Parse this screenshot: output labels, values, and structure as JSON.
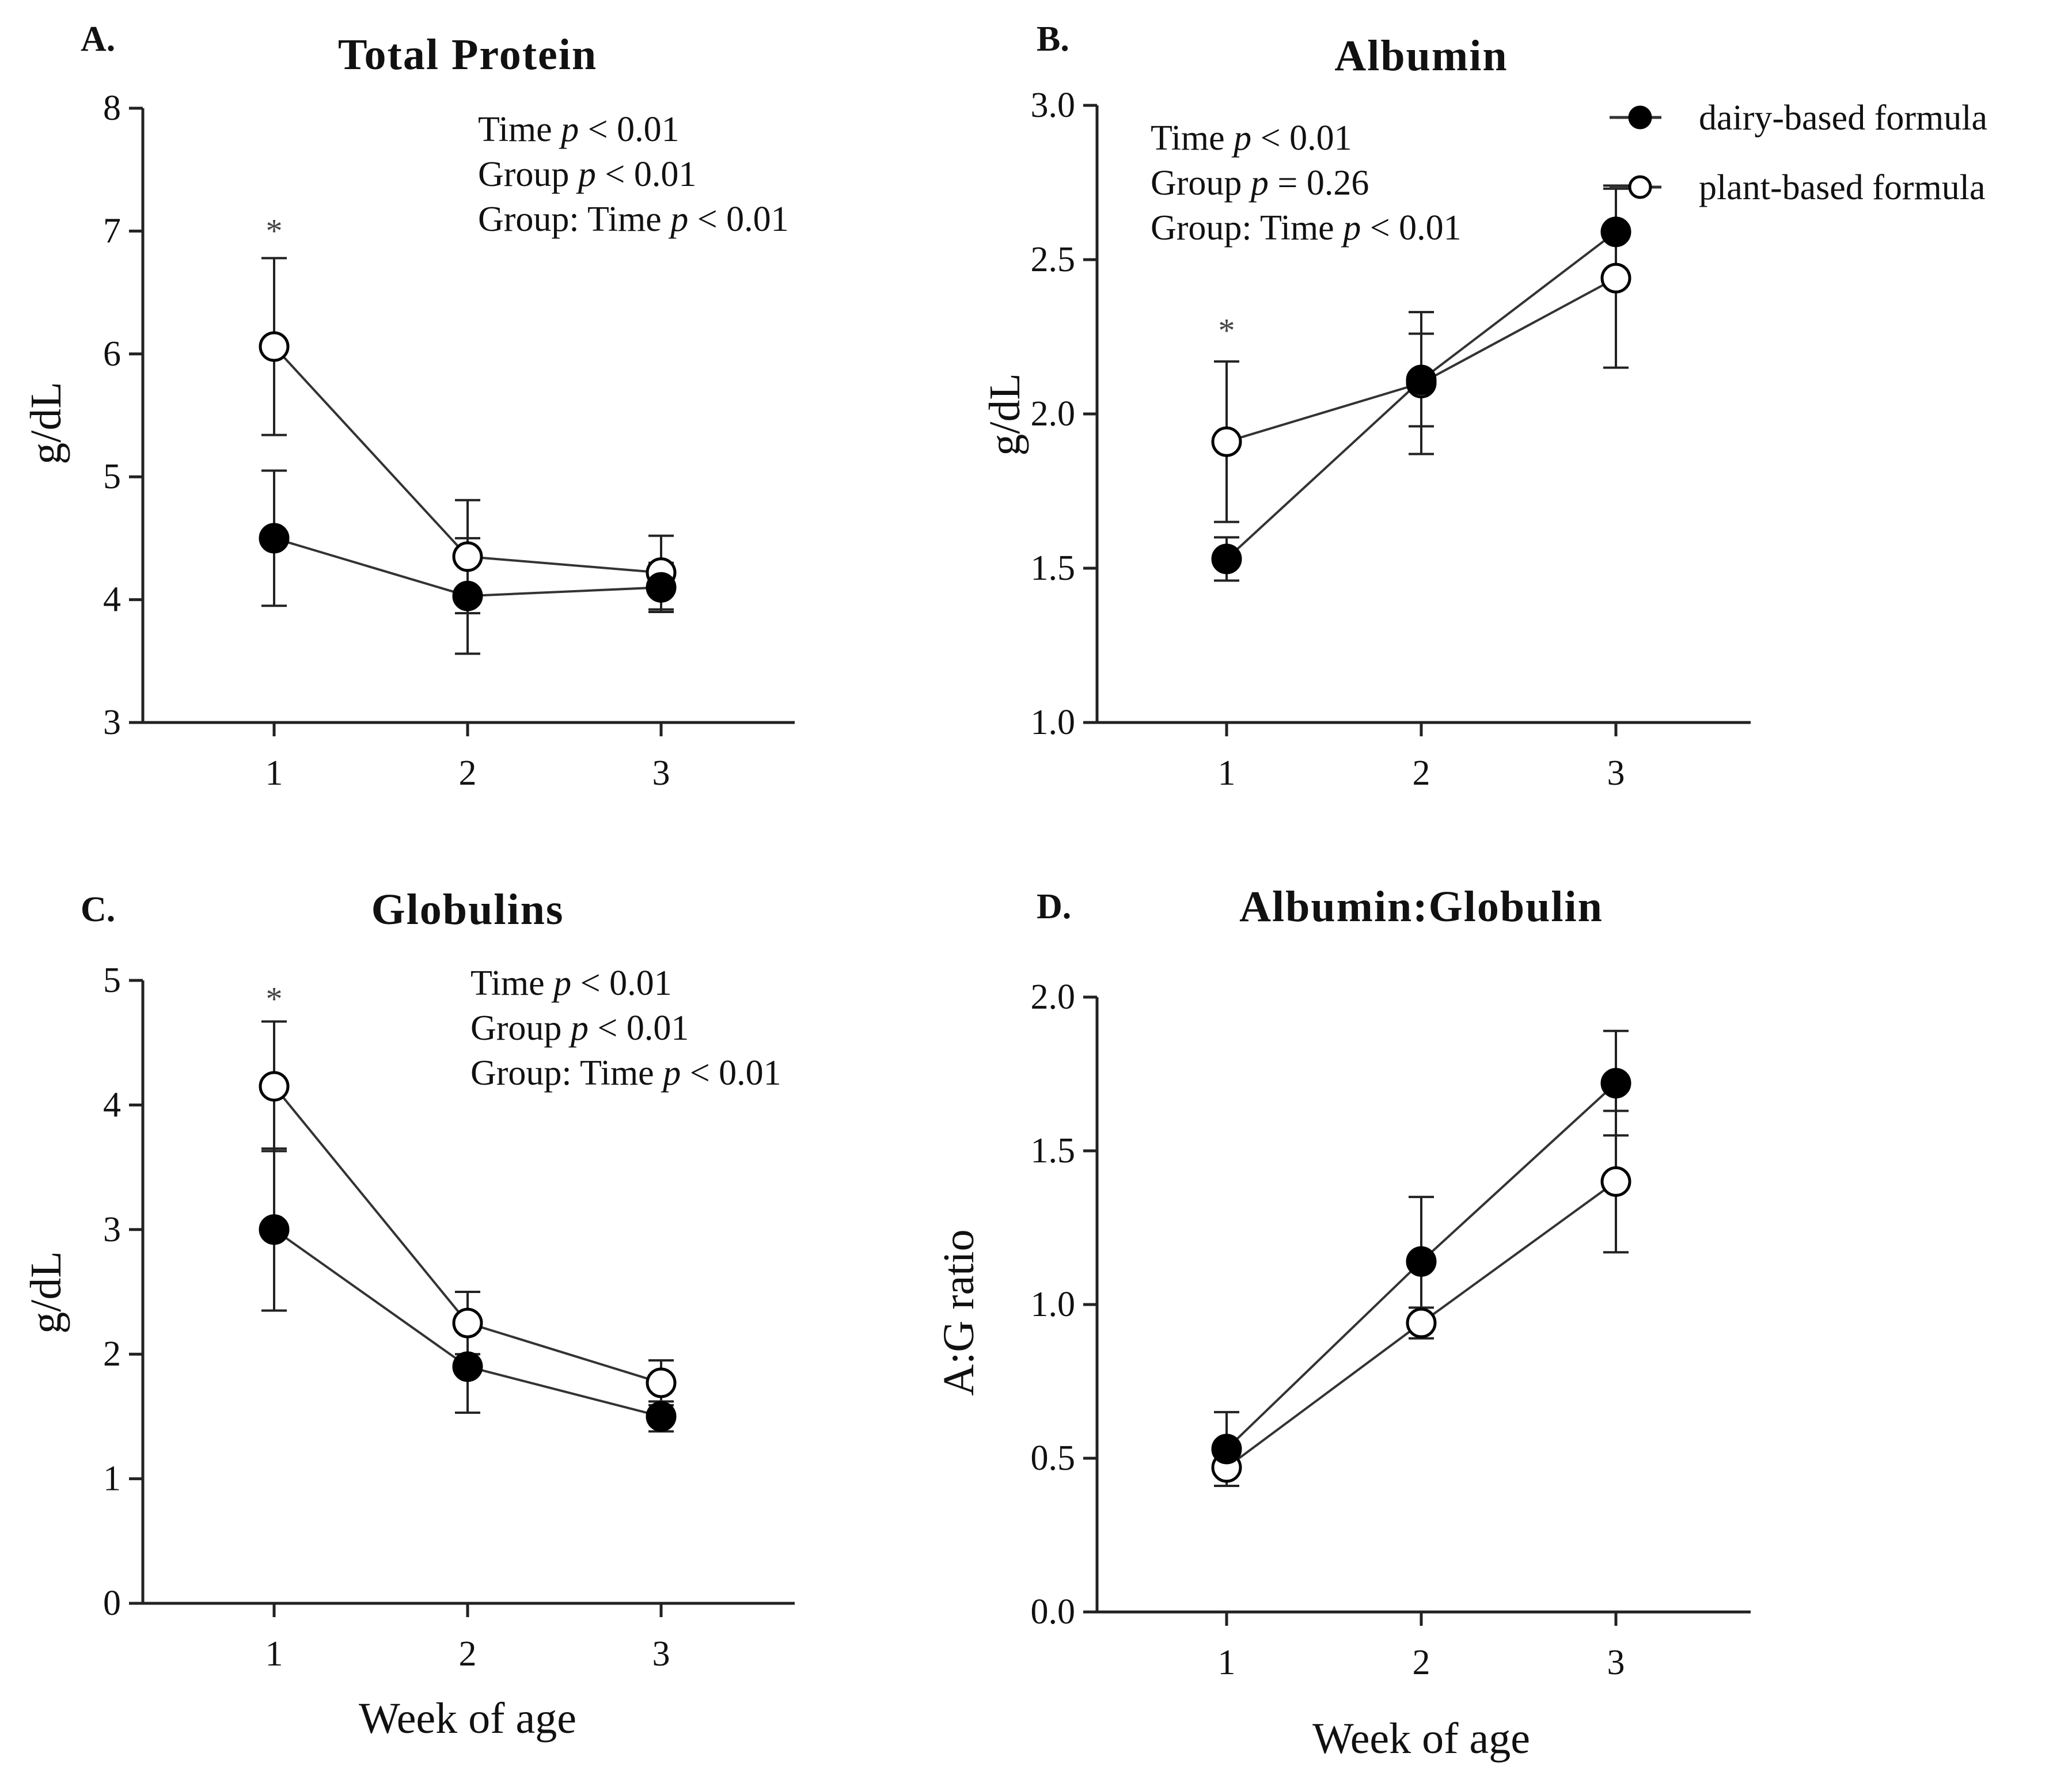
{
  "chart_data": [
    {
      "type": "line",
      "letter": "A.",
      "title": "Total Protein",
      "ylabel": "g/dL",
      "xlabel": "",
      "ylim": [
        3,
        8
      ],
      "yticks": [
        3,
        4,
        5,
        6,
        7,
        8
      ],
      "ytick_labels": [
        "3",
        "4",
        "5",
        "6",
        "7",
        "8"
      ],
      "x": [
        1,
        2,
        3
      ],
      "xtick_labels": [
        "1",
        "2",
        "3"
      ],
      "stats": [
        {
          "pre": "Time ",
          "p": "p",
          "post": " < 0.01"
        },
        {
          "pre": "Group ",
          "p": "p",
          "post": " < 0.01"
        },
        {
          "pre": "Group: Time ",
          "p": "p",
          "post": " < 0.01"
        }
      ],
      "significance": [
        {
          "x": 1,
          "y": 7.05,
          "label": "*"
        }
      ],
      "series": [
        {
          "name": "dairy-based formula",
          "values": [
            4.5,
            4.03,
            4.1
          ],
          "sd": [
            0.55,
            0.47,
            0.2
          ]
        },
        {
          "name": "plant-based formula",
          "values": [
            6.06,
            4.35,
            4.22
          ],
          "sd": [
            0.72,
            0.46,
            0.3
          ]
        }
      ]
    },
    {
      "type": "line",
      "letter": "B.",
      "title": "Albumin",
      "ylabel": "g/dL",
      "xlabel": "",
      "ylim": [
        1.0,
        3.0
      ],
      "yticks": [
        1.0,
        1.5,
        2.0,
        2.5,
        3.0
      ],
      "ytick_labels": [
        "1.0",
        "1.5",
        "2.0",
        "2.5",
        "3.0"
      ],
      "x": [
        1,
        2,
        3
      ],
      "xtick_labels": [
        "1",
        "2",
        "3"
      ],
      "stats": [
        {
          "pre": "Time ",
          "p": "p",
          "post": " < 0.01"
        },
        {
          "pre": "Group ",
          "p": "p",
          "post": " = 0.26"
        },
        {
          "pre": "Group: Time ",
          "p": "p",
          "post": " < 0.01"
        }
      ],
      "significance": [
        {
          "x": 1,
          "y": 2.29,
          "label": "*"
        }
      ],
      "series": [
        {
          "name": "dairy-based formula",
          "values": [
            1.53,
            2.11,
            2.59
          ],
          "sd": [
            0.07,
            0.15,
            0.15
          ]
        },
        {
          "name": "plant-based formula",
          "values": [
            1.91,
            2.1,
            2.44
          ],
          "sd": [
            0.26,
            0.23,
            0.29
          ]
        }
      ]
    },
    {
      "type": "line",
      "letter": "C.",
      "title": "Globulins",
      "ylabel": "g/dL",
      "xlabel": "Week of age",
      "ylim": [
        0,
        5
      ],
      "yticks": [
        0,
        1,
        2,
        3,
        4,
        5
      ],
      "ytick_labels": [
        "0",
        "1",
        "2",
        "3",
        "4",
        "5"
      ],
      "x": [
        1,
        2,
        3
      ],
      "xtick_labels": [
        "1",
        "2",
        "3"
      ],
      "stats": [
        {
          "pre": "Time ",
          "p": "p",
          "post": " < 0.01"
        },
        {
          "pre": "Group ",
          "p": "p",
          "post": " < 0.01"
        },
        {
          "pre": "Group: Time ",
          "p": "p",
          "post": " < 0.01"
        }
      ],
      "significance": [
        {
          "x": 1,
          "y": 4.9,
          "label": "*"
        }
      ],
      "series": [
        {
          "name": "dairy-based formula",
          "values": [
            3.0,
            1.9,
            1.5
          ],
          "sd": [
            0.65,
            0.37,
            0.12
          ]
        },
        {
          "name": "plant-based formula",
          "values": [
            4.15,
            2.25,
            1.77
          ],
          "sd": [
            0.52,
            0.25,
            0.18
          ]
        }
      ]
    },
    {
      "type": "line",
      "letter": "D.",
      "title": "Albumin:Globulin",
      "ylabel": "A:G ratio",
      "xlabel": "Week of age",
      "ylim": [
        0.0,
        2.0
      ],
      "yticks": [
        0.0,
        0.5,
        1.0,
        1.5,
        2.0
      ],
      "ytick_labels": [
        "0.0",
        "0.5",
        "1.0",
        "1.5",
        "2.0"
      ],
      "x": [
        1,
        2,
        3
      ],
      "xtick_labels": [
        "1",
        "2",
        "3"
      ],
      "stats": [],
      "significance": [],
      "series": [
        {
          "name": "dairy-based formula",
          "values": [
            0.53,
            1.14,
            1.72
          ],
          "sd": [
            0.12,
            0.21,
            0.17
          ]
        },
        {
          "name": "plant-based formula",
          "values": [
            0.47,
            0.94,
            1.4
          ],
          "sd": [
            0.06,
            0.05,
            0.23
          ]
        }
      ]
    }
  ],
  "legend": {
    "items": [
      {
        "label": "dairy-based formula",
        "marker": "filled-circle"
      },
      {
        "label": "plant-based formula",
        "marker": "open-circle"
      }
    ]
  },
  "colors": {
    "line": "#333333",
    "marker_fill_dairy": "#000000",
    "marker_fill_plant": "#ffffff",
    "star": "#444444"
  }
}
